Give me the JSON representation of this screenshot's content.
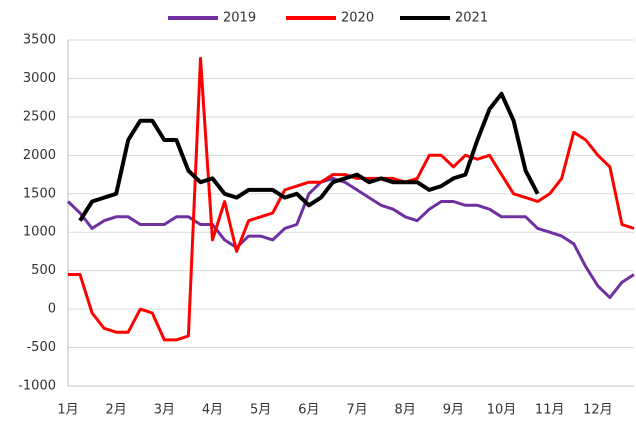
{
  "chart_data": {
    "type": "line",
    "categories": [
      "1月",
      null,
      null,
      null,
      "2月",
      null,
      null,
      null,
      "3月",
      null,
      null,
      null,
      "4月",
      null,
      null,
      null,
      "5月",
      null,
      null,
      null,
      "6月",
      null,
      null,
      null,
      "7月",
      null,
      null,
      null,
      "8月",
      null,
      null,
      null,
      "9月",
      null,
      null,
      null,
      "10月",
      null,
      null,
      null,
      "11月",
      null,
      null,
      null,
      "12月",
      null,
      null,
      null
    ],
    "series": [
      {
        "name": "2019",
        "color": "#7030a0",
        "values": [
          1400,
          1250,
          1050,
          1150,
          1200,
          1200,
          1100,
          1100,
          1100,
          1200,
          1200,
          1100,
          1100,
          900,
          800,
          950,
          950,
          900,
          1050,
          1100,
          1500,
          1650,
          1700,
          1650,
          1550,
          1450,
          1350,
          1300,
          1200,
          1150,
          1300,
          1400,
          1400,
          1350,
          1350,
          1300,
          1200,
          1200,
          1200,
          1050,
          1000,
          950,
          850,
          550,
          300,
          150,
          350,
          450
        ]
      },
      {
        "name": "2020",
        "color": "#ff0000",
        "values": [
          450,
          450,
          -50,
          -250,
          -300,
          -300,
          0,
          -50,
          -400,
          -400,
          -350,
          3260,
          900,
          1400,
          750,
          1150,
          1200,
          1250,
          1550,
          1600,
          1650,
          1650,
          1750,
          1750,
          1700,
          1700,
          1700,
          1700,
          1650,
          1700,
          2000,
          2000,
          1850,
          2000,
          1950,
          2000,
          1750,
          1500,
          1450,
          1400,
          1500,
          1700,
          2300,
          2200,
          2000,
          1850,
          1100,
          1050
        ]
      },
      {
        "name": "2021",
        "color": "#000000",
        "values": [
          null,
          1150,
          1400,
          1450,
          1500,
          2200,
          2450,
          2450,
          2200,
          2200,
          1800,
          1650,
          1700,
          1500,
          1450,
          1550,
          1550,
          1550,
          1450,
          1500,
          1350,
          1450,
          1650,
          1700,
          1750,
          1650,
          1700,
          1650,
          1650,
          1650,
          1550,
          1600,
          1700,
          1750,
          2200,
          2600,
          2800,
          2450,
          1800,
          1500,
          null,
          null,
          null,
          null,
          null,
          null,
          null,
          null
        ]
      }
    ],
    "ylim": [
      -1000,
      3500
    ],
    "yticks": [
      -1000,
      -500,
      0,
      500,
      1000,
      1500,
      2000,
      2500,
      3000,
      3500
    ],
    "grid": true
  }
}
